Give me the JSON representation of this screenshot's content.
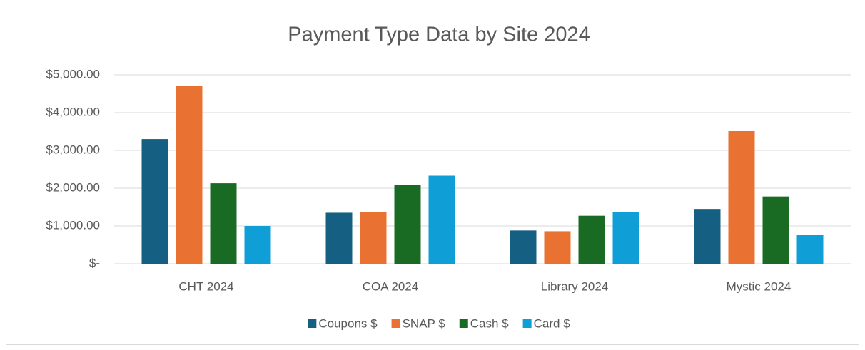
{
  "chart_data": {
    "type": "bar",
    "title": "Payment Type Data by Site 2024",
    "categories": [
      "CHT 2024",
      "COA 2024",
      "Library 2024",
      "Mystic 2024"
    ],
    "series": [
      {
        "name": "Coupons $",
        "color": "#156082",
        "values": [
          3300,
          1350,
          880,
          1450
        ]
      },
      {
        "name": "SNAP $",
        "color": "#e97132",
        "values": [
          4700,
          1370,
          860,
          3510
        ]
      },
      {
        "name": "Cash $",
        "color": "#196b24",
        "values": [
          2130,
          2080,
          1270,
          1780
        ]
      },
      {
        "name": "Card $",
        "color": "#0f9ed5",
        "values": [
          1000,
          2330,
          1370,
          770
        ]
      }
    ],
    "ylim": [
      0,
      5000
    ],
    "yticks": [
      {
        "value": 0,
        "label": "$-"
      },
      {
        "value": 1000,
        "label": "$1,000.00"
      },
      {
        "value": 2000,
        "label": "$2,000.00"
      },
      {
        "value": 3000,
        "label": "$3,000.00"
      },
      {
        "value": 4000,
        "label": "$4,000.00"
      },
      {
        "value": 5000,
        "label": "$5,000.00"
      }
    ],
    "grid": true,
    "legend": "bottom"
  }
}
